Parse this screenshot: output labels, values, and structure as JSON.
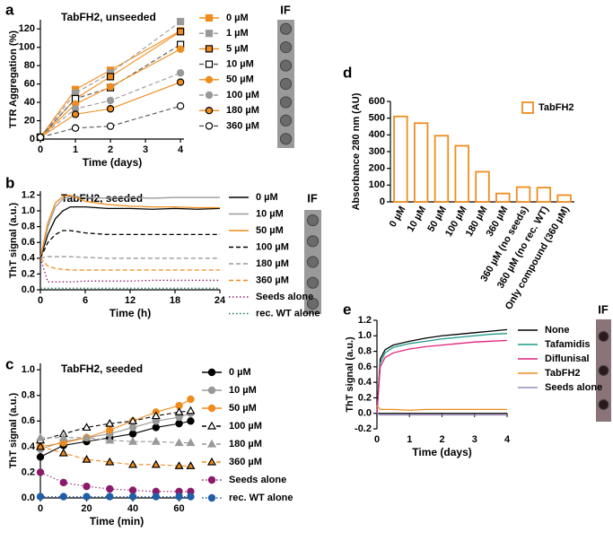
{
  "chart_data": [
    {
      "type": "line",
      "panel_label": "a",
      "title": "TabFH2, unseeded",
      "xlabel": "Time (days)",
      "ylabel": "TTR Aggregation (%)",
      "inset_label": "IF",
      "x": [
        0,
        1,
        2,
        4
      ],
      "xlim": [
        0,
        4.1
      ],
      "xticks": [
        0,
        1,
        2,
        3,
        4
      ],
      "ylim": [
        0,
        130
      ],
      "yticks": [
        0,
        20,
        40,
        60,
        80,
        100,
        120
      ],
      "series": [
        {
          "name": "0 µM",
          "color": "#f08c1e",
          "dash": "solid",
          "marker": "square",
          "marker_fill": "filled",
          "values": [
            2,
            54,
            75,
            118
          ]
        },
        {
          "name": "1 µM",
          "color": "#999999",
          "dash": "dashed",
          "marker": "square",
          "marker_fill": "filled",
          "values": [
            2,
            50,
            72,
            128
          ]
        },
        {
          "name": "5 µM",
          "color": "#f08c1e",
          "dash": "solid",
          "marker": "square",
          "marker_fill": "outlined",
          "values": [
            2,
            44,
            68,
            117
          ]
        },
        {
          "name": "10 µM",
          "color": "#555555",
          "dash": "dashed",
          "marker": "square",
          "marker_fill": "open",
          "values": [
            2,
            44,
            56,
            103
          ]
        },
        {
          "name": "50 µM",
          "color": "#f08c1e",
          "dash": "solid",
          "marker": "circle",
          "marker_fill": "filled",
          "values": [
            2,
            38,
            57,
            98
          ]
        },
        {
          "name": "100 µM",
          "color": "#999999",
          "dash": "dashed",
          "marker": "circle",
          "marker_fill": "filled",
          "values": [
            2,
            33,
            42,
            72
          ]
        },
        {
          "name": "180 µM",
          "color": "#f08c1e",
          "dash": "solid",
          "marker": "circle",
          "marker_fill": "outlined",
          "values": [
            2,
            27,
            33,
            62
          ]
        },
        {
          "name": "360 µM",
          "color": "#555555",
          "dash": "dashed",
          "marker": "circle",
          "marker_fill": "open",
          "values": [
            2,
            12,
            14,
            36
          ]
        }
      ]
    },
    {
      "type": "line",
      "panel_label": "b",
      "title": "TabFH2, seeded",
      "xlabel": "Time (h)",
      "ylabel": "ThT signal (a.u.)",
      "inset_label": "IF",
      "x": [
        0,
        1,
        2,
        3,
        4,
        6,
        9,
        12,
        15,
        18,
        21,
        24
      ],
      "xlim": [
        0,
        24
      ],
      "xticks": [
        0,
        6,
        12,
        18,
        24
      ],
      "ylim": [
        0,
        1.25
      ],
      "yticks": [
        {
          "value": 0,
          "label": "0.0"
        },
        0.2,
        0.4,
        0.6,
        0.8,
        {
          "value": 1,
          "label": "1.0"
        },
        1.2
      ],
      "series": [
        {
          "name": "0 µM",
          "color": "#000000",
          "dash": "solid",
          "marker": "none",
          "values": [
            0.4,
            0.7,
            0.9,
            1.0,
            1.05,
            1.05,
            1.03,
            1.03,
            1.02,
            1.03,
            1.02,
            1.03
          ]
        },
        {
          "name": "10 µM",
          "color": "#999999",
          "dash": "solid",
          "marker": "none",
          "values": [
            0.4,
            0.8,
            1.05,
            1.15,
            1.18,
            1.17,
            1.16,
            1.17,
            1.16,
            1.17,
            1.17,
            1.17
          ]
        },
        {
          "name": "50 µM",
          "color": "#f08c1e",
          "dash": "solid",
          "marker": "none",
          "values": [
            0.4,
            0.85,
            1.1,
            1.18,
            1.2,
            1.12,
            1.08,
            1.06,
            1.05,
            1.05,
            1.04,
            1.04
          ]
        },
        {
          "name": "100 µM",
          "color": "#000000",
          "dash": "dashed",
          "marker": "none",
          "values": [
            0.4,
            0.6,
            0.7,
            0.75,
            0.75,
            0.72,
            0.7,
            0.7,
            0.7,
            0.7,
            0.7,
            0.7
          ]
        },
        {
          "name": "180 µM",
          "color": "#999999",
          "dash": "dashed",
          "marker": "none",
          "values": [
            0.4,
            0.42,
            0.42,
            0.42,
            0.42,
            0.41,
            0.4,
            0.4,
            0.4,
            0.4,
            0.4,
            0.4
          ]
        },
        {
          "name": "360 µM",
          "color": "#f08c1e",
          "dash": "dashed",
          "marker": "none",
          "values": [
            0.4,
            0.3,
            0.27,
            0.26,
            0.25,
            0.25,
            0.25,
            0.25,
            0.25,
            0.25,
            0.25,
            0.25
          ]
        },
        {
          "name": "Seeds alone",
          "color": "#8b1a6b",
          "dash": "dotted",
          "marker": "none",
          "values": [
            0.4,
            0.1,
            0.1,
            0.1,
            0.1,
            0.11,
            0.11,
            0.11,
            0.12,
            0.12,
            0.12,
            0.12
          ]
        },
        {
          "name": "rec. WT alone",
          "color": "#1a7a4a",
          "dash": "dotted",
          "marker": "none",
          "values": [
            0.02,
            0.02,
            0.02,
            0.02,
            0.02,
            0.02,
            0.02,
            0.02,
            0.02,
            0.02,
            0.02,
            0.02
          ]
        }
      ]
    },
    {
      "type": "line",
      "panel_label": "c",
      "title": "TabFH2, seeded",
      "xlabel": "Time (min)",
      "ylabel": "ThT signal (a.u.)",
      "x": [
        0,
        10,
        20,
        30,
        40,
        50,
        60,
        65
      ],
      "xlim": [
        0,
        66
      ],
      "xticks": [
        0,
        20,
        40,
        60
      ],
      "ylim": [
        0,
        1.05
      ],
      "yticks": [
        {
          "value": 0,
          "label": "0.0"
        },
        0.2,
        0.4,
        0.6,
        0.8,
        {
          "value": 1,
          "label": "1.0"
        }
      ],
      "series": [
        {
          "name": "0 µM",
          "color": "#000000",
          "dash": "solid",
          "marker": "circle",
          "marker_fill": "filled",
          "values": [
            0.32,
            0.41,
            0.44,
            0.47,
            0.5,
            0.55,
            0.58,
            0.6
          ]
        },
        {
          "name": "10 µM",
          "color": "#999999",
          "dash": "solid",
          "marker": "circle",
          "marker_fill": "filled",
          "values": [
            0.38,
            0.44,
            0.47,
            0.5,
            0.55,
            0.6,
            0.63,
            0.66
          ]
        },
        {
          "name": "50 µM",
          "color": "#f08c1e",
          "dash": "solid",
          "marker": "circle",
          "marker_fill": "filled",
          "values": [
            0.4,
            0.43,
            0.47,
            0.53,
            0.6,
            0.67,
            0.72,
            0.77
          ]
        },
        {
          "name": "100 µM",
          "color": "#000000",
          "dash": "dashed",
          "marker": "triangle",
          "marker_fill": "open",
          "values": [
            0.45,
            0.5,
            0.55,
            0.58,
            0.6,
            0.64,
            0.67,
            0.68
          ]
        },
        {
          "name": "180 µM",
          "color": "#999999",
          "dash": "dashed",
          "marker": "triangle",
          "marker_fill": "filled",
          "values": [
            0.47,
            0.47,
            0.47,
            0.45,
            0.44,
            0.44,
            0.43,
            0.43
          ]
        },
        {
          "name": "360 µM",
          "color": "#f08c1e",
          "dash": "dashed",
          "marker": "triangle",
          "marker_fill": "outlined",
          "values": [
            0.4,
            0.35,
            0.3,
            0.28,
            0.26,
            0.26,
            0.25,
            0.25
          ]
        },
        {
          "name": "Seeds alone",
          "color": "#8b1a6b",
          "dash": "dotted",
          "marker": "circle",
          "marker_fill": "filled",
          "values": [
            0.2,
            0.12,
            0.09,
            0.07,
            0.06,
            0.05,
            0.05,
            0.05
          ]
        },
        {
          "name": "rec. WT alone",
          "color": "#1f5fa8",
          "dash": "dotted",
          "marker": "circle",
          "marker_fill": "filled",
          "values": [
            0.01,
            0.01,
            0.01,
            0.01,
            0.01,
            0.01,
            0.01,
            0.01
          ]
        }
      ]
    },
    {
      "type": "bar",
      "panel_label": "d",
      "ylabel": "Absorbance 280 nm (AU)",
      "categories": [
        "0 µM",
        "10 µM",
        "50 µM",
        "100 µM",
        "180 µM",
        "360 µM",
        "360 µM (no seeds)",
        "360 µM (no rec. WT)",
        "Only compound (360 µM)"
      ],
      "ylim": [
        0,
        600
      ],
      "yticks": [
        0,
        100,
        200,
        300,
        400,
        500,
        600
      ],
      "series": [
        {
          "name": "TabFH2",
          "color": "#f08c1e",
          "values": [
            510,
            470,
            395,
            335,
            180,
            50,
            88,
            85,
            40
          ]
        }
      ]
    },
    {
      "type": "line",
      "panel_label": "e",
      "xlabel": "Time (days)",
      "ylabel": "ThT signal (a.u.)",
      "inset_label": "IF",
      "x": [
        0,
        0.1,
        0.25,
        0.5,
        1,
        1.5,
        2,
        2.5,
        3,
        3.5,
        4
      ],
      "xlim": [
        0,
        4
      ],
      "xticks": [
        0,
        1,
        2,
        3,
        4
      ],
      "ylim": [
        -0.2,
        1.2
      ],
      "yticks": [
        -0.2,
        {
          "value": 0,
          "label": "0.0"
        },
        0.2,
        0.4,
        0.6,
        0.8,
        {
          "value": 1,
          "label": "1.0"
        },
        1.2
      ],
      "series": [
        {
          "name": "None",
          "color": "#000000",
          "dash": "solid",
          "marker": "none",
          "values": [
            0,
            0.7,
            0.82,
            0.88,
            0.93,
            0.97,
            1.0,
            1.02,
            1.04,
            1.06,
            1.08
          ]
        },
        {
          "name": "Tafamidis",
          "color": "#1a9a8a",
          "dash": "solid",
          "marker": "none",
          "values": [
            0,
            0.65,
            0.78,
            0.85,
            0.9,
            0.93,
            0.96,
            0.98,
            1.0,
            1.02,
            1.03
          ]
        },
        {
          "name": "Diflunisal",
          "color": "#e0207a",
          "dash": "solid",
          "marker": "none",
          "values": [
            0,
            0.6,
            0.72,
            0.78,
            0.83,
            0.86,
            0.88,
            0.9,
            0.92,
            0.93,
            0.94
          ]
        },
        {
          "name": "TabFH2",
          "color": "#f08c1e",
          "dash": "solid",
          "marker": "none",
          "values": [
            0.1,
            0.05,
            0.05,
            0.05,
            0.04,
            0.05,
            0.05,
            0.05,
            0.05,
            0.05,
            0.05
          ]
        },
        {
          "name": "Seeds alone",
          "color": "#9a8ab8",
          "dash": "solid",
          "marker": "none",
          "values": [
            0,
            -0.02,
            -0.02,
            -0.02,
            -0.02,
            -0.02,
            -0.02,
            -0.02,
            -0.02,
            -0.02,
            -0.02
          ]
        }
      ]
    }
  ]
}
